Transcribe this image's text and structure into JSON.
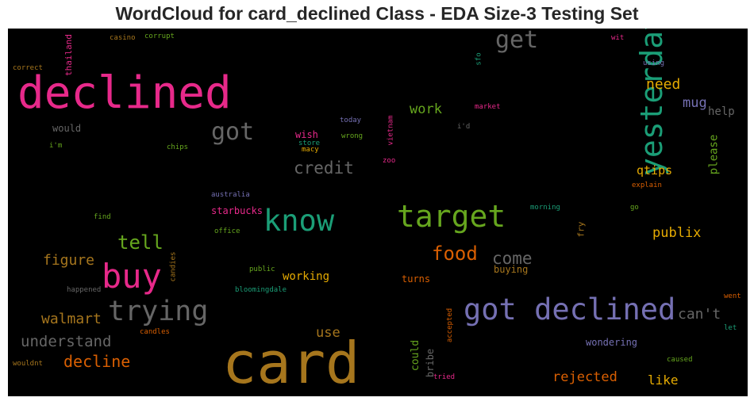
{
  "chart_data": {
    "type": "wordcloud",
    "title": "WordCloud for card_declined Class - EDA Size-3 Testing Set",
    "background": "#000000",
    "words": [
      {
        "text": "card",
        "color": "#a6761d"
      },
      {
        "text": "declined",
        "color": "#e7298a"
      },
      {
        "text": "got declined",
        "color": "#7570b3"
      },
      {
        "text": "yesterday",
        "color": "#1b9e77"
      },
      {
        "text": "target",
        "color": "#66a61e"
      },
      {
        "text": "know",
        "color": "#1b9e77"
      },
      {
        "text": "buy",
        "color": "#e7298a"
      },
      {
        "text": "trying",
        "color": "#666666"
      },
      {
        "text": "got",
        "color": "#666666"
      },
      {
        "text": "get",
        "color": "#666666"
      },
      {
        "text": "food",
        "color": "#d95f02"
      },
      {
        "text": "tell",
        "color": "#66a61e"
      },
      {
        "text": "credit",
        "color": "#666666"
      },
      {
        "text": "understand",
        "color": "#666666"
      },
      {
        "text": "decline",
        "color": "#d95f02"
      },
      {
        "text": "walmart",
        "color": "#a6761d"
      },
      {
        "text": "figure",
        "color": "#a6761d"
      },
      {
        "text": "come",
        "color": "#666666"
      },
      {
        "text": "need",
        "color": "#e6ab02"
      },
      {
        "text": "mug",
        "color": "#7570b3"
      },
      {
        "text": "work",
        "color": "#66a61e"
      },
      {
        "text": "publix",
        "color": "#e6ab02"
      },
      {
        "text": "can't",
        "color": "#666666"
      },
      {
        "text": "rejected",
        "color": "#d95f02"
      },
      {
        "text": "like",
        "color": "#e6ab02"
      },
      {
        "text": "use",
        "color": "#a6761d"
      },
      {
        "text": "wondering",
        "color": "#7570b3"
      },
      {
        "text": "qtips",
        "color": "#e6ab02"
      },
      {
        "text": "please",
        "color": "#66a61e"
      },
      {
        "text": "help",
        "color": "#666666"
      },
      {
        "text": "working",
        "color": "#e6ab02"
      },
      {
        "text": "could",
        "color": "#66a61e"
      },
      {
        "text": "bribe",
        "color": "#666666"
      },
      {
        "text": "turns",
        "color": "#d95f02"
      },
      {
        "text": "buying",
        "color": "#a6761d"
      },
      {
        "text": "starbucks",
        "color": "#e7298a"
      },
      {
        "text": "would",
        "color": "#666666"
      },
      {
        "text": "wish",
        "color": "#e7298a"
      },
      {
        "text": "thailand",
        "color": "#e7298a"
      },
      {
        "text": "fry",
        "color": "#a6761d"
      },
      {
        "text": "casino",
        "color": "#a6761d"
      },
      {
        "text": "corrupt",
        "color": "#66a61e"
      },
      {
        "text": "wit",
        "color": "#e7298a"
      },
      {
        "text": "using",
        "color": "#7570b3"
      },
      {
        "text": "correct",
        "color": "#a6761d"
      },
      {
        "text": "sfo",
        "color": "#1b9e77"
      },
      {
        "text": "market",
        "color": "#e7298a"
      },
      {
        "text": "today",
        "color": "#7570b3"
      },
      {
        "text": "i'd",
        "color": "#666666"
      },
      {
        "text": "i'm",
        "color": "#66a61e"
      },
      {
        "text": "chips",
        "color": "#66a61e"
      },
      {
        "text": "store",
        "color": "#1b9e77"
      },
      {
        "text": "macy",
        "color": "#e6ab02"
      },
      {
        "text": "wrong",
        "color": "#66a61e"
      },
      {
        "text": "vietnam",
        "color": "#e7298a"
      },
      {
        "text": "zoo",
        "color": "#e7298a"
      },
      {
        "text": "explain",
        "color": "#d95f02"
      },
      {
        "text": "australia",
        "color": "#7570b3"
      },
      {
        "text": "find",
        "color": "#66a61e"
      },
      {
        "text": "office",
        "color": "#66a61e"
      },
      {
        "text": "morning",
        "color": "#1b9e77"
      },
      {
        "text": "go",
        "color": "#66a61e"
      },
      {
        "text": "candies",
        "color": "#a6761d"
      },
      {
        "text": "public",
        "color": "#66a61e"
      },
      {
        "text": "happened",
        "color": "#666666"
      },
      {
        "text": "bloomingdale",
        "color": "#1b9e77"
      },
      {
        "text": "went",
        "color": "#d95f02"
      },
      {
        "text": "accepted",
        "color": "#d95f02"
      },
      {
        "text": "let",
        "color": "#1b9e77"
      },
      {
        "text": "candles",
        "color": "#d95f02"
      },
      {
        "text": "caused",
        "color": "#66a61e"
      },
      {
        "text": "wouldnt",
        "color": "#a6761d"
      },
      {
        "text": "tried",
        "color": "#e7298a"
      }
    ]
  }
}
